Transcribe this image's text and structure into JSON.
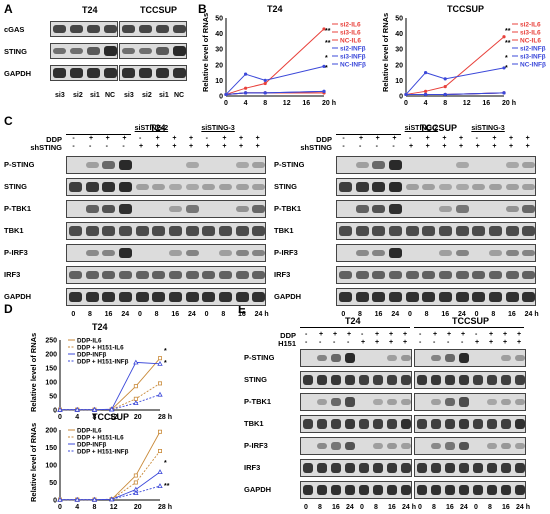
{
  "panels": {
    "A": {
      "letter": "A",
      "titles": [
        "T24",
        "TCCSUP"
      ],
      "rows": [
        "cGAS",
        "STING",
        "GAPDH"
      ],
      "lanes": [
        "si3",
        "si2",
        "si1",
        "NC"
      ]
    },
    "B": {
      "letter": "B",
      "titles": [
        "T24",
        "TCCSUP"
      ],
      "ylabel": "Relative level of RNAs",
      "xticks": [
        "0",
        "4",
        "8",
        "12",
        "16",
        "20 h"
      ],
      "yticks_t24": [
        "0",
        "10",
        "20",
        "30",
        "40",
        "50"
      ],
      "yticks_tcc": [
        "0",
        "10",
        "20",
        "30",
        "40",
        "50"
      ],
      "legend": [
        "si2-IL6",
        "si3-IL6",
        "NC-IL6",
        "si2-INFβ",
        "si3-INFβ",
        "NC-INFβ"
      ],
      "sig": [
        "**",
        "**",
        "*",
        "*"
      ]
    },
    "C": {
      "letter": "C",
      "titles": [
        "T24",
        "TCCSUP"
      ],
      "groups": [
        "siSTING-2",
        "siSTING-3"
      ],
      "treat_labels": [
        "DDP",
        "shSTING"
      ],
      "ddp_signs": [
        "-",
        "+",
        "+",
        "+",
        "-",
        "+",
        "+",
        "+",
        "-",
        "+",
        "+",
        "+"
      ],
      "sh_signs": [
        "-",
        "-",
        "-",
        "-",
        "+",
        "+",
        "+",
        "+",
        "+",
        "+",
        "+",
        "+"
      ],
      "rows": [
        "P-STING",
        "STING",
        "P-TBK1",
        "TBK1",
        "P-IRF3",
        "IRF3",
        "GAPDH"
      ],
      "lanes": [
        "0",
        "8",
        "16",
        "24",
        "0",
        "8",
        "16",
        "24",
        "0",
        "8",
        "16",
        "24 h"
      ]
    },
    "D": {
      "letter": "D",
      "titles": [
        "T24",
        "TCCSUP"
      ],
      "ylabel": "Relative level of RNAs",
      "xticks": [
        "0",
        "4",
        "8",
        "12",
        "20",
        "28 h"
      ],
      "yticks_top": [
        "0",
        "50",
        "100",
        "150",
        "200",
        "250"
      ],
      "yticks_bottom": [
        "0",
        "50",
        "100",
        "150",
        "200"
      ],
      "legend": [
        "DDP-IL6",
        "DDP + H151-IL6",
        "DDP-INFβ",
        "DDP + H151-INFβ"
      ],
      "sig": [
        "*",
        "*",
        "*",
        "**"
      ]
    },
    "E": {
      "letter": "E",
      "titles": [
        "T24",
        "TCCSUP"
      ],
      "treat_labels": [
        "DDP",
        "H151"
      ],
      "ddp_signs": [
        "-",
        "+",
        "+",
        "+",
        "-",
        "+",
        "+",
        "+"
      ],
      "h151_signs": [
        "-",
        "-",
        "-",
        "-",
        "+",
        "+",
        "+",
        "+"
      ],
      "rows": [
        "P-STING",
        "STING",
        "P-TBK1",
        "TBK1",
        "P-IRF3",
        "IRF3",
        "GAPDH"
      ],
      "lanes": [
        "0",
        "8",
        "16",
        "24",
        "0",
        "8",
        "16",
        "24 h"
      ]
    }
  },
  "colors": {
    "red": "#e8413b",
    "blue": "#3b48d9",
    "orange": "#c98a3a",
    "band": "#1e1e1e"
  },
  "chart_data": [
    {
      "type": "line",
      "title": "T24",
      "ylabel": "Relative level of RNAs",
      "x": [
        0,
        4,
        8,
        20
      ],
      "ylim": [
        0,
        50
      ],
      "series": [
        {
          "name": "si2-IL6",
          "values": [
            1,
            2,
            2,
            2
          ]
        },
        {
          "name": "si3-IL6",
          "values": [
            1,
            2,
            2,
            2
          ]
        },
        {
          "name": "NC-IL6",
          "values": [
            1,
            5,
            8,
            43
          ]
        },
        {
          "name": "si2-INFβ",
          "values": [
            1,
            2,
            2,
            3
          ]
        },
        {
          "name": "si3-INFβ",
          "values": [
            1,
            2,
            2,
            3
          ]
        },
        {
          "name": "NC-INFβ",
          "values": [
            1,
            14,
            10,
            19
          ]
        }
      ]
    },
    {
      "type": "line",
      "title": "TCCSUP",
      "ylabel": "Relative level of RNAs",
      "x": [
        0,
        4,
        8,
        20
      ],
      "ylim": [
        0,
        50
      ],
      "series": [
        {
          "name": "si2-IL6",
          "values": [
            1,
            1,
            1,
            2
          ]
        },
        {
          "name": "si3-IL6",
          "values": [
            1,
            1,
            1,
            2
          ]
        },
        {
          "name": "NC-IL6",
          "values": [
            1,
            3,
            6,
            38
          ]
        },
        {
          "name": "si2-INFβ",
          "values": [
            1,
            1,
            1,
            2
          ]
        },
        {
          "name": "si3-INFβ",
          "values": [
            1,
            1,
            1,
            2
          ]
        },
        {
          "name": "NC-INFβ",
          "values": [
            1,
            15,
            11,
            18
          ]
        }
      ]
    },
    {
      "type": "line",
      "title": "T24",
      "ylabel": "Relative level of RNAs",
      "x": [
        0,
        4,
        8,
        12,
        20,
        28
      ],
      "ylim": [
        0,
        250
      ],
      "series": [
        {
          "name": "DDP-IL6",
          "values": [
            1,
            1,
            1,
            2,
            85,
            185
          ]
        },
        {
          "name": "DDP + H151-IL6",
          "values": [
            1,
            1,
            1,
            2,
            40,
            95
          ]
        },
        {
          "name": "DDP-INFβ",
          "values": [
            1,
            1,
            1,
            3,
            170,
            165
          ]
        },
        {
          "name": "DDP + H151-INFβ",
          "values": [
            1,
            1,
            1,
            2,
            25,
            55
          ]
        }
      ]
    },
    {
      "type": "line",
      "title": "TCCSUP",
      "ylabel": "Relative level of RNAs",
      "x": [
        0,
        4,
        8,
        12,
        20,
        28
      ],
      "ylim": [
        0,
        200
      ],
      "series": [
        {
          "name": "DDP-IL6",
          "values": [
            1,
            1,
            1,
            2,
            70,
            195
          ]
        },
        {
          "name": "DDP + H151-IL6",
          "values": [
            1,
            1,
            1,
            2,
            50,
            140
          ]
        },
        {
          "name": "DDP-INFβ",
          "values": [
            1,
            1,
            1,
            2,
            30,
            80
          ]
        },
        {
          "name": "DDP + H151-INFβ",
          "values": [
            1,
            1,
            1,
            2,
            20,
            40
          ]
        }
      ]
    }
  ]
}
